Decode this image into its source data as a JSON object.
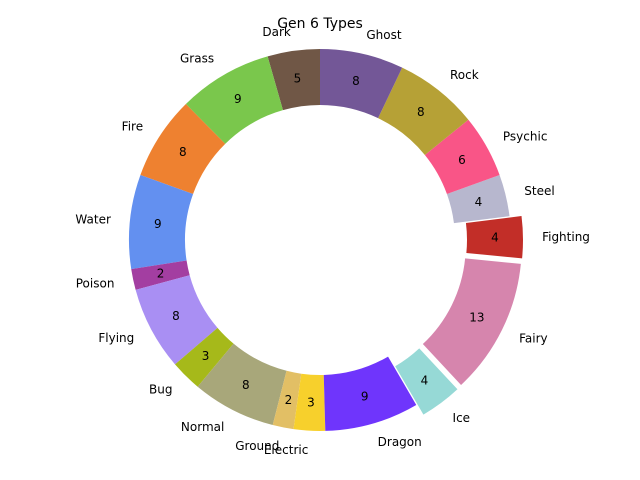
{
  "chart_data": {
    "type": "pie",
    "style": "donut",
    "title": "Gen 6 Types",
    "slices": [
      {
        "label": "Dark",
        "value": 5,
        "color": "#705746",
        "explode": false
      },
      {
        "label": "Grass",
        "value": 9,
        "color": "#7AC74C",
        "explode": false
      },
      {
        "label": "Fire",
        "value": 8,
        "color": "#EE8130",
        "explode": false
      },
      {
        "label": "Water",
        "value": 9,
        "color": "#6390F0",
        "explode": false
      },
      {
        "label": "Poison",
        "value": 2,
        "color": "#A33EA1",
        "explode": false
      },
      {
        "label": "Flying",
        "value": 8,
        "color": "#A98FF3",
        "explode": false
      },
      {
        "label": "Bug",
        "value": 3,
        "color": "#A6B91A",
        "explode": false
      },
      {
        "label": "Normal",
        "value": 8,
        "color": "#A8A77A",
        "explode": false
      },
      {
        "label": "Ground",
        "value": 2,
        "color": "#E2BF65",
        "explode": false
      },
      {
        "label": "Electric",
        "value": 3,
        "color": "#F7D02C",
        "explode": false
      },
      {
        "label": "Dragon",
        "value": 9,
        "color": "#6F35FC",
        "explode": false
      },
      {
        "label": "Ice",
        "value": 4,
        "color": "#96D9D6",
        "explode": true
      },
      {
        "label": "Fairy",
        "value": 13,
        "color": "#D685AD",
        "explode": true
      },
      {
        "label": "Fighting",
        "value": 4,
        "color": "#C22E28",
        "explode": true
      },
      {
        "label": "Steel",
        "value": 4,
        "color": "#B7B7CE",
        "explode": false
      },
      {
        "label": "Psychic",
        "value": 6,
        "color": "#F95587",
        "explode": false
      },
      {
        "label": "Rock",
        "value": 8,
        "color": "#B6A136",
        "explode": false
      },
      {
        "label": "Ghost",
        "value": 8,
        "color": "#735797",
        "explode": false
      }
    ],
    "start": "top",
    "direction": "counterclockwise"
  }
}
